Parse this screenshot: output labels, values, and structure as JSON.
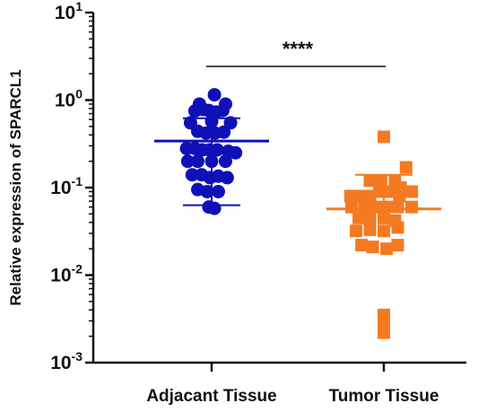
{
  "chart_data": {
    "type": "scatter",
    "ylabel": "Relative expression of SPARCL1",
    "yscale": "log",
    "ylim": [
      0.001,
      10
    ],
    "ytick_labels": [
      {
        "value": 10,
        "base": "10",
        "exp": "1"
      },
      {
        "value": 1,
        "base": "10",
        "exp": "0"
      },
      {
        "value": 0.1,
        "base": "10",
        "exp": "-1"
      },
      {
        "value": 0.01,
        "base": "10",
        "exp": "-2"
      },
      {
        "value": 0.001,
        "base": "10",
        "exp": "-3"
      }
    ],
    "categories": [
      "Adjacant Tissue",
      "Tumor Tissue"
    ],
    "significance": {
      "label": "****",
      "between": [
        0,
        1
      ]
    },
    "series": [
      {
        "category": "Adjacant Tissue",
        "marker": "circle",
        "color": "#1010b8",
        "summary": {
          "mean": 0.34,
          "upper": 0.62,
          "lower": 0.063
        },
        "points": [
          {
            "offset": 0.05,
            "y": 1.15
          },
          {
            "offset": -0.22,
            "y": 0.9
          },
          {
            "offset": 0.25,
            "y": 0.9
          },
          {
            "offset": -0.3,
            "y": 0.75
          },
          {
            "offset": -0.15,
            "y": 0.78
          },
          {
            "offset": -0.05,
            "y": 0.76
          },
          {
            "offset": 0.08,
            "y": 0.73
          },
          {
            "offset": 0.2,
            "y": 0.76
          },
          {
            "offset": -0.38,
            "y": 0.55
          },
          {
            "offset": 0.0,
            "y": 0.57
          },
          {
            "offset": 0.34,
            "y": 0.55
          },
          {
            "offset": -0.25,
            "y": 0.44
          },
          {
            "offset": -0.1,
            "y": 0.42
          },
          {
            "offset": 0.06,
            "y": 0.42
          },
          {
            "offset": 0.22,
            "y": 0.43
          },
          {
            "offset": -0.45,
            "y": 0.28
          },
          {
            "offset": -0.3,
            "y": 0.28
          },
          {
            "offset": -0.17,
            "y": 0.27
          },
          {
            "offset": -0.04,
            "y": 0.27
          },
          {
            "offset": 0.1,
            "y": 0.27
          },
          {
            "offset": 0.3,
            "y": 0.26
          },
          {
            "offset": 0.43,
            "y": 0.25
          },
          {
            "offset": -0.43,
            "y": 0.2
          },
          {
            "offset": -0.25,
            "y": 0.2
          },
          {
            "offset": 0.0,
            "y": 0.2
          },
          {
            "offset": 0.25,
            "y": 0.2
          },
          {
            "offset": -0.35,
            "y": 0.14
          },
          {
            "offset": -0.18,
            "y": 0.14
          },
          {
            "offset": -0.03,
            "y": 0.13
          },
          {
            "offset": 0.12,
            "y": 0.135
          },
          {
            "offset": 0.28,
            "y": 0.13
          },
          {
            "offset": -0.25,
            "y": 0.095
          },
          {
            "offset": -0.08,
            "y": 0.09
          },
          {
            "offset": 0.12,
            "y": 0.09
          },
          {
            "offset": -0.05,
            "y": 0.06
          },
          {
            "offset": 0.05,
            "y": 0.058
          }
        ]
      },
      {
        "category": "Tumor Tissue",
        "marker": "square",
        "color": "#f47a22",
        "summary": {
          "mean": 0.057,
          "upper": 0.14,
          "lower": null
        },
        "points": [
          {
            "offset": 0.0,
            "y": 0.38
          },
          {
            "offset": -0.25,
            "y": 0.12
          },
          {
            "offset": -0.05,
            "y": 0.12
          },
          {
            "offset": 0.2,
            "y": 0.12
          },
          {
            "offset": 0.4,
            "y": 0.17
          },
          {
            "offset": 0.3,
            "y": 0.1
          },
          {
            "offset": -0.6,
            "y": 0.08
          },
          {
            "offset": -0.45,
            "y": 0.08
          },
          {
            "offset": -0.25,
            "y": 0.08
          },
          {
            "offset": -0.08,
            "y": 0.09
          },
          {
            "offset": 0.1,
            "y": 0.09
          },
          {
            "offset": 0.28,
            "y": 0.08
          },
          {
            "offset": 0.5,
            "y": 0.09
          },
          {
            "offset": -0.58,
            "y": 0.06
          },
          {
            "offset": -0.35,
            "y": 0.06
          },
          {
            "offset": -0.15,
            "y": 0.06
          },
          {
            "offset": 0.05,
            "y": 0.06
          },
          {
            "offset": 0.25,
            "y": 0.06
          },
          {
            "offset": 0.5,
            "y": 0.06
          },
          {
            "offset": -0.45,
            "y": 0.045
          },
          {
            "offset": -0.25,
            "y": 0.045
          },
          {
            "offset": 0.0,
            "y": 0.045
          },
          {
            "offset": 0.2,
            "y": 0.042
          },
          {
            "offset": -0.5,
            "y": 0.032
          },
          {
            "offset": -0.25,
            "y": 0.033
          },
          {
            "offset": 0.0,
            "y": 0.032
          },
          {
            "offset": 0.25,
            "y": 0.035
          },
          {
            "offset": -0.4,
            "y": 0.022
          },
          {
            "offset": -0.2,
            "y": 0.021
          },
          {
            "offset": 0.05,
            "y": 0.02
          },
          {
            "offset": 0.25,
            "y": 0.022
          },
          {
            "offset": 0.0,
            "y": 0.0035
          },
          {
            "offset": 0.0,
            "y": 0.0027
          },
          {
            "offset": 0.0,
            "y": 0.0022
          }
        ]
      }
    ]
  }
}
